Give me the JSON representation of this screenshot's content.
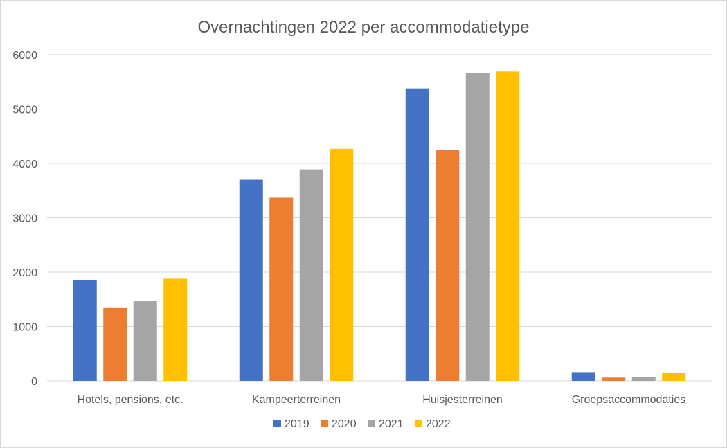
{
  "chart_data": {
    "type": "bar",
    "title": "Overnachtingen 2022 per accommodatietype",
    "categories": [
      "Hotels, pensions, etc.",
      "Kampeerterreinen",
      "Huisjesterreinen",
      "Groepsaccommodaties"
    ],
    "series": [
      {
        "name": "2019",
        "color": "#4472c4",
        "values": [
          1850,
          3700,
          5380,
          160
        ]
      },
      {
        "name": "2020",
        "color": "#ed7d31",
        "values": [
          1340,
          3370,
          4250,
          60
        ]
      },
      {
        "name": "2021",
        "color": "#a5a5a5",
        "values": [
          1470,
          3890,
          5660,
          70
        ]
      },
      {
        "name": "2022",
        "color": "#ffc000",
        "values": [
          1880,
          4270,
          5690,
          150
        ]
      }
    ],
    "ylim": [
      0,
      6000
    ],
    "yticks": [
      "0",
      "1000",
      "2000",
      "3000",
      "4000",
      "5000",
      "6000"
    ],
    "grid": true,
    "legend_position": "bottom"
  }
}
